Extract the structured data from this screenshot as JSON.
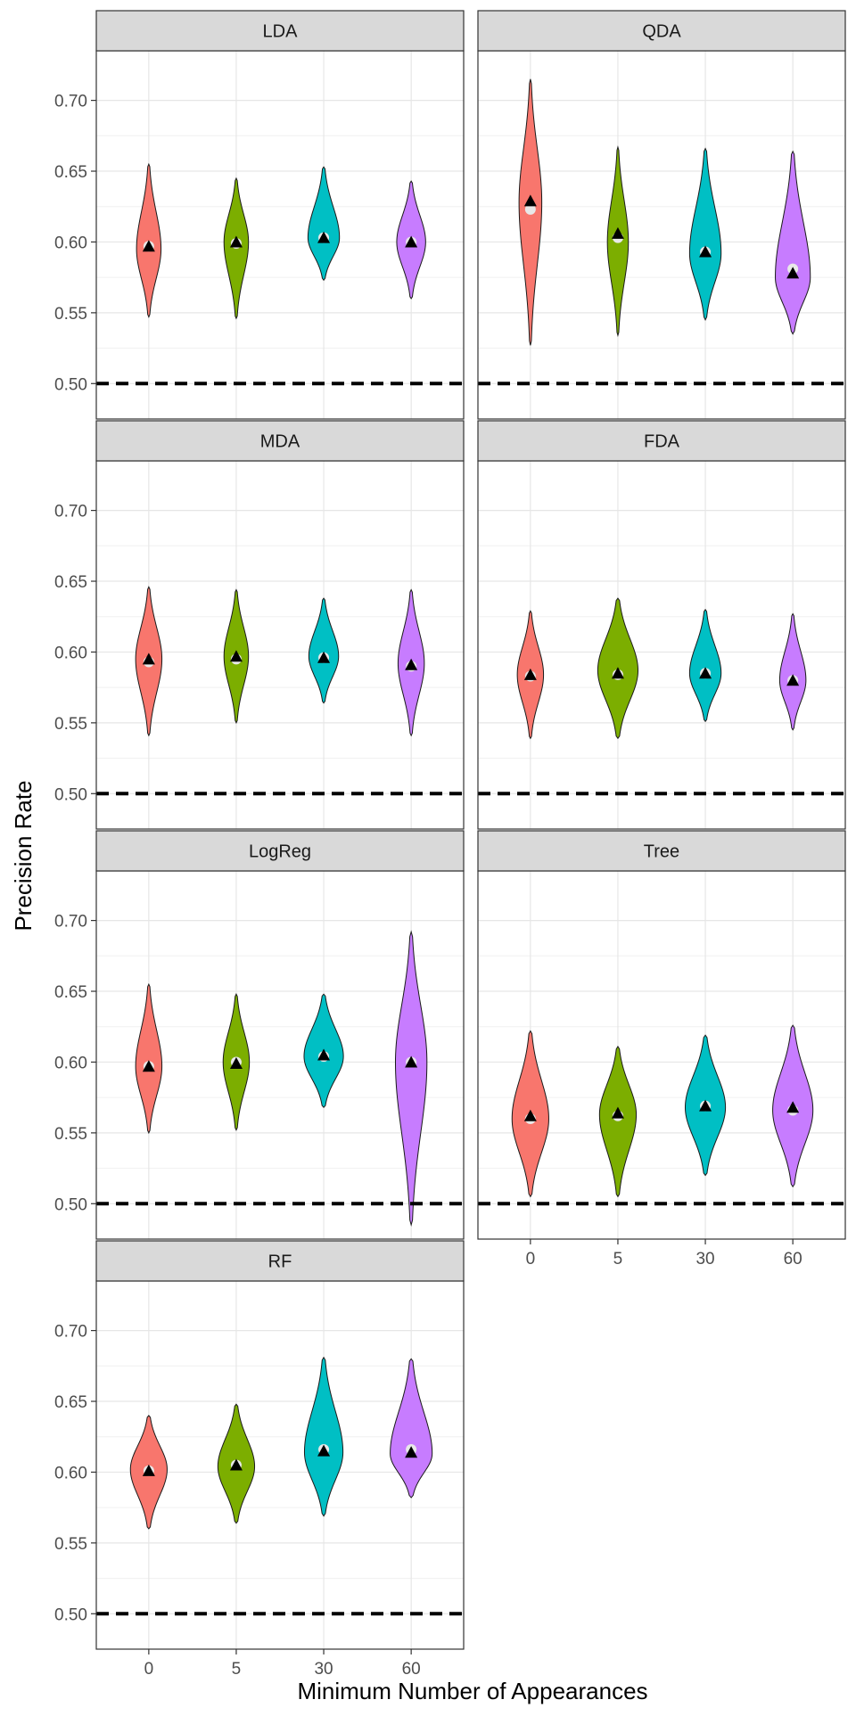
{
  "chart_data": {
    "type": "violin",
    "xlabel": "Minimum Number of Appearances",
    "ylabel": "Precision Rate",
    "categories": [
      "0",
      "5",
      "30",
      "60"
    ],
    "colors": [
      "#F8766D",
      "#7CAE00",
      "#00BFC4",
      "#C77CFF"
    ],
    "ylim": [
      0.475,
      0.735
    ],
    "yticks": [
      0.5,
      0.55,
      0.6,
      0.65,
      0.7
    ],
    "ytick_labels": [
      "0.50",
      "0.55",
      "0.60",
      "0.65",
      "0.70"
    ],
    "reference_line": 0.5,
    "reference_line_style": "dashed",
    "grid": true,
    "legend": "none",
    "mean_marker": "black triangle",
    "median_marker": "white circle",
    "panels": [
      {
        "name": "LDA",
        "violins": [
          {
            "min": 0.547,
            "max": 0.655,
            "mode": 0.595,
            "max_width": 0.28,
            "mean": 0.597,
            "median": 0.597
          },
          {
            "min": 0.546,
            "max": 0.645,
            "mode": 0.6,
            "max_width": 0.28,
            "mean": 0.6,
            "median": 0.599
          },
          {
            "min": 0.573,
            "max": 0.653,
            "mode": 0.603,
            "max_width": 0.36,
            "mean": 0.603,
            "median": 0.603
          },
          {
            "min": 0.56,
            "max": 0.643,
            "mode": 0.6,
            "max_width": 0.33,
            "mean": 0.6,
            "median": 0.6
          }
        ]
      },
      {
        "name": "QDA",
        "violins": [
          {
            "min": 0.527,
            "max": 0.715,
            "mode": 0.628,
            "max_width": 0.26,
            "mean": 0.629,
            "median": 0.623
          },
          {
            "min": 0.534,
            "max": 0.667,
            "mode": 0.6,
            "max_width": 0.24,
            "mean": 0.606,
            "median": 0.603
          },
          {
            "min": 0.545,
            "max": 0.666,
            "mode": 0.592,
            "max_width": 0.36,
            "mean": 0.593,
            "median": 0.593
          },
          {
            "min": 0.535,
            "max": 0.664,
            "mode": 0.575,
            "max_width": 0.4,
            "mean": 0.578,
            "median": 0.581
          }
        ]
      },
      {
        "name": "MDA",
        "violins": [
          {
            "min": 0.541,
            "max": 0.646,
            "mode": 0.595,
            "max_width": 0.3,
            "mean": 0.595,
            "median": 0.593
          },
          {
            "min": 0.55,
            "max": 0.644,
            "mode": 0.597,
            "max_width": 0.28,
            "mean": 0.597,
            "median": 0.595
          },
          {
            "min": 0.564,
            "max": 0.638,
            "mode": 0.597,
            "max_width": 0.34,
            "mean": 0.596,
            "median": 0.596
          },
          {
            "min": 0.541,
            "max": 0.644,
            "mode": 0.592,
            "max_width": 0.3,
            "mean": 0.591,
            "median": 0.59
          }
        ]
      },
      {
        "name": "FDA",
        "violins": [
          {
            "min": 0.539,
            "max": 0.629,
            "mode": 0.584,
            "max_width": 0.3,
            "mean": 0.584,
            "median": 0.583
          },
          {
            "min": 0.539,
            "max": 0.638,
            "mode": 0.587,
            "max_width": 0.46,
            "mean": 0.585,
            "median": 0.584
          },
          {
            "min": 0.551,
            "max": 0.63,
            "mode": 0.585,
            "max_width": 0.36,
            "mean": 0.585,
            "median": 0.585
          },
          {
            "min": 0.545,
            "max": 0.627,
            "mode": 0.58,
            "max_width": 0.3,
            "mean": 0.58,
            "median": 0.58
          }
        ]
      },
      {
        "name": "LogReg",
        "violins": [
          {
            "min": 0.55,
            "max": 0.655,
            "mode": 0.597,
            "max_width": 0.3,
            "mean": 0.597,
            "median": 0.597
          },
          {
            "min": 0.552,
            "max": 0.648,
            "mode": 0.6,
            "max_width": 0.3,
            "mean": 0.599,
            "median": 0.6
          },
          {
            "min": 0.568,
            "max": 0.648,
            "mode": 0.604,
            "max_width": 0.45,
            "mean": 0.605,
            "median": 0.604
          },
          {
            "min": 0.485,
            "max": 0.692,
            "mode": 0.6,
            "max_width": 0.36,
            "mean": 0.6,
            "median": 0.6
          }
        ]
      },
      {
        "name": "Tree",
        "violins": [
          {
            "min": 0.505,
            "max": 0.622,
            "mode": 0.56,
            "max_width": 0.42,
            "mean": 0.562,
            "median": 0.56
          },
          {
            "min": 0.505,
            "max": 0.611,
            "mode": 0.563,
            "max_width": 0.42,
            "mean": 0.564,
            "median": 0.562
          },
          {
            "min": 0.52,
            "max": 0.619,
            "mode": 0.568,
            "max_width": 0.46,
            "mean": 0.569,
            "median": 0.569
          },
          {
            "min": 0.512,
            "max": 0.626,
            "mode": 0.566,
            "max_width": 0.46,
            "mean": 0.568,
            "median": 0.566
          }
        ]
      },
      {
        "name": "RF",
        "violins": [
          {
            "min": 0.56,
            "max": 0.64,
            "mode": 0.602,
            "max_width": 0.42,
            "mean": 0.601,
            "median": 0.601
          },
          {
            "min": 0.564,
            "max": 0.648,
            "mode": 0.604,
            "max_width": 0.42,
            "mean": 0.605,
            "median": 0.605
          },
          {
            "min": 0.569,
            "max": 0.681,
            "mode": 0.614,
            "max_width": 0.44,
            "mean": 0.615,
            "median": 0.616
          },
          {
            "min": 0.582,
            "max": 0.68,
            "mode": 0.613,
            "max_width": 0.48,
            "mean": 0.614,
            "median": 0.616
          }
        ]
      }
    ]
  }
}
